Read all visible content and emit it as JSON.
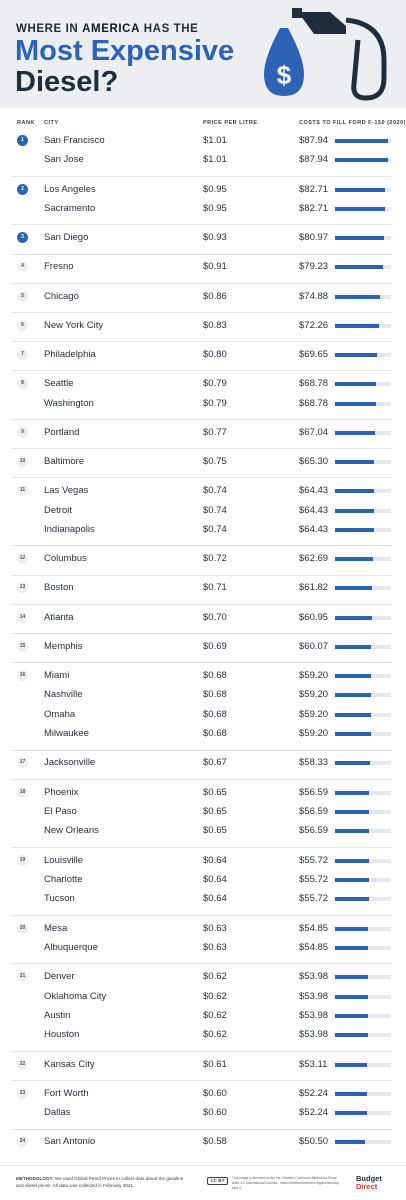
{
  "header": {
    "line1_pre": "WHERE IN ",
    "line1_bold": "AMERICA",
    "line1_post": " HAS THE",
    "line2": "Most Expensive",
    "line3": "Diesel?",
    "dollar_symbol": "$",
    "icon": "fuel-pump-nozzle-icon",
    "accent_color": "#2c63b6"
  },
  "columns": {
    "rank": "RANK",
    "city": "CITY",
    "price": "PRICE PER LITRE",
    "cost": "COSTS TO FILL FORD F-150 (2020)"
  },
  "chart_data": {
    "type": "table",
    "bar_color": "#2d62b0",
    "bar_max_value": 93.0,
    "groups": [
      {
        "rank": "1",
        "rows": [
          {
            "city": "San Francisco",
            "price": "$1.01",
            "cost": "$87.94",
            "value": 87.94
          },
          {
            "city": "San Jose",
            "price": "$1.01",
            "cost": "$87.94",
            "value": 87.94
          }
        ]
      },
      {
        "rank": "2",
        "rows": [
          {
            "city": "Los Angeles",
            "price": "$0.95",
            "cost": "$82.71",
            "value": 82.71
          },
          {
            "city": "Sacramento",
            "price": "$0.95",
            "cost": "$82.71",
            "value": 82.71
          }
        ]
      },
      {
        "rank": "3",
        "rows": [
          {
            "city": "San Diego",
            "price": "$0.93",
            "cost": "$80.97",
            "value": 80.97
          }
        ]
      },
      {
        "rank": "4",
        "rows": [
          {
            "city": "Fresno",
            "price": "$0.91",
            "cost": "$79.23",
            "value": 79.23
          }
        ]
      },
      {
        "rank": "5",
        "rows": [
          {
            "city": "Chicago",
            "price": "$0.86",
            "cost": "$74.88",
            "value": 74.88
          }
        ]
      },
      {
        "rank": "6",
        "rows": [
          {
            "city": "New York City",
            "price": "$0.83",
            "cost": "$72.26",
            "value": 72.26
          }
        ]
      },
      {
        "rank": "7",
        "rows": [
          {
            "city": "Philadelphia",
            "price": "$0.80",
            "cost": "$69.65",
            "value": 69.65
          }
        ]
      },
      {
        "rank": "8",
        "rows": [
          {
            "city": "Seattle",
            "price": "$0.79",
            "cost": "$68.78",
            "value": 68.78
          },
          {
            "city": "Washington",
            "price": "$0.79",
            "cost": "$68.78",
            "value": 68.78
          }
        ]
      },
      {
        "rank": "9",
        "rows": [
          {
            "city": "Portland",
            "price": "$0.77",
            "cost": "$67.04",
            "value": 67.04
          }
        ]
      },
      {
        "rank": "10",
        "rows": [
          {
            "city": "Baltimore",
            "price": "$0.75",
            "cost": "$65.30",
            "value": 65.3
          }
        ]
      },
      {
        "rank": "11",
        "rows": [
          {
            "city": "Las Vegas",
            "price": "$0.74",
            "cost": "$64.43",
            "value": 64.43
          },
          {
            "city": "Detroit",
            "price": "$0.74",
            "cost": "$64.43",
            "value": 64.43
          },
          {
            "city": "Indianapolis",
            "price": "$0.74",
            "cost": "$64.43",
            "value": 64.43
          }
        ]
      },
      {
        "rank": "12",
        "rows": [
          {
            "city": "Columbus",
            "price": "$0.72",
            "cost": "$62.69",
            "value": 62.69
          }
        ]
      },
      {
        "rank": "13",
        "rows": [
          {
            "city": "Boston",
            "price": "$0.71",
            "cost": "$61.82",
            "value": 61.82
          }
        ]
      },
      {
        "rank": "14",
        "rows": [
          {
            "city": "Atlanta",
            "price": "$0.70",
            "cost": "$60.95",
            "value": 60.95
          }
        ]
      },
      {
        "rank": "15",
        "rows": [
          {
            "city": "Memphis",
            "price": "$0.69",
            "cost": "$60.07",
            "value": 60.07
          }
        ]
      },
      {
        "rank": "16",
        "rows": [
          {
            "city": "Miami",
            "price": "$0.68",
            "cost": "$59.20",
            "value": 59.2
          },
          {
            "city": "Nashville",
            "price": "$0.68",
            "cost": "$59.20",
            "value": 59.2
          },
          {
            "city": "Omaha",
            "price": "$0.68",
            "cost": "$59.20",
            "value": 59.2
          },
          {
            "city": "Milwaukee",
            "price": "$0.68",
            "cost": "$59.20",
            "value": 59.2
          }
        ]
      },
      {
        "rank": "17",
        "rows": [
          {
            "city": "Jacksonville",
            "price": "$0.67",
            "cost": "$58.33",
            "value": 58.33
          }
        ]
      },
      {
        "rank": "18",
        "rows": [
          {
            "city": "Phoenix",
            "price": "$0.65",
            "cost": "$56.59",
            "value": 56.59
          },
          {
            "city": "El Paso",
            "price": "$0.65",
            "cost": "$56.59",
            "value": 56.59
          },
          {
            "city": "New Orleans",
            "price": "$0.65",
            "cost": "$56.59",
            "value": 56.59
          }
        ]
      },
      {
        "rank": "19",
        "rows": [
          {
            "city": "Louisville",
            "price": "$0.64",
            "cost": "$55.72",
            "value": 55.72
          },
          {
            "city": "Charlotte",
            "price": "$0.64",
            "cost": "$55.72",
            "value": 55.72
          },
          {
            "city": "Tucson",
            "price": "$0.64",
            "cost": "$55.72",
            "value": 55.72
          }
        ]
      },
      {
        "rank": "20",
        "rows": [
          {
            "city": "Mesa",
            "price": "$0.63",
            "cost": "$54.85",
            "value": 54.85
          },
          {
            "city": "Albuquerque",
            "price": "$0.63",
            "cost": "$54.85",
            "value": 54.85
          }
        ]
      },
      {
        "rank": "21",
        "rows": [
          {
            "city": "Denver",
            "price": "$0.62",
            "cost": "$53.98",
            "value": 53.98
          },
          {
            "city": "Oklahoma City",
            "price": "$0.62",
            "cost": "$53.98",
            "value": 53.98
          },
          {
            "city": "Austin",
            "price": "$0.62",
            "cost": "$53.98",
            "value": 53.98
          },
          {
            "city": "Houston",
            "price": "$0.62",
            "cost": "$53.98",
            "value": 53.98
          }
        ]
      },
      {
        "rank": "22",
        "rows": [
          {
            "city": "Kansas City",
            "price": "$0.61",
            "cost": "$53.11",
            "value": 53.11
          }
        ]
      },
      {
        "rank": "23",
        "rows": [
          {
            "city": "Fort Worth",
            "price": "$0.60",
            "cost": "$52.24",
            "value": 52.24
          },
          {
            "city": "Dallas",
            "price": "$0.60",
            "cost": "$52.24",
            "value": 52.24
          }
        ]
      },
      {
        "rank": "24",
        "rows": [
          {
            "city": "San Antonio",
            "price": "$0.58",
            "cost": "$50.50",
            "value": 50.5
          }
        ]
      }
    ]
  },
  "footer": {
    "methodology_label": "METHODOLOGY:",
    "methodology_text": " We used Global Petrol Prices to collect data about the gasoline and diesel prices. All data was collected in February 2021.",
    "cc_badge": "CC BY",
    "cc_text": "This image is licensed under the Creative Commons Attribution-Share Alike 4.0 International License - www.creativecommons.org/licenses/by-sa/4.0",
    "logo_line1": "Budget",
    "logo_line2": "Direct"
  }
}
